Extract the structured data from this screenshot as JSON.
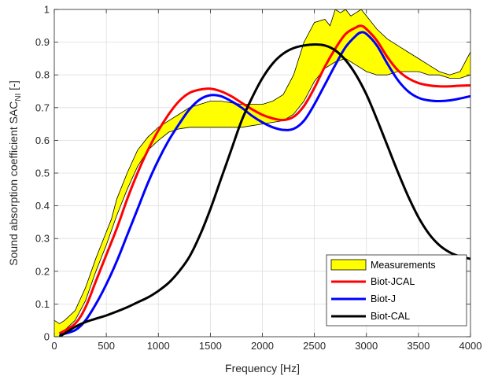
{
  "chart_data": {
    "type": "line",
    "xlabel": "Frequency [Hz]",
    "ylabel_main": "Sound absorption coefficient SAC",
    "ylabel_sub": "NI",
    "ylabel_suffix": " [-]",
    "xlim": [
      0,
      4000
    ],
    "ylim": [
      0,
      1
    ],
    "grid": true,
    "legend_position": "bottom-right",
    "x_ticks": [
      0,
      500,
      1000,
      1500,
      2000,
      2500,
      3000,
      3500,
      4000
    ],
    "y_ticks": [
      0,
      0.1,
      0.2,
      0.3,
      0.4,
      0.5,
      0.6,
      0.7,
      0.8,
      0.9,
      1
    ],
    "x_tick_labels": [
      "0",
      "500",
      "1000",
      "1500",
      "2000",
      "2500",
      "3000",
      "3500",
      "4000"
    ],
    "y_tick_labels": [
      "0",
      "0.1",
      "0.2",
      "0.3",
      "0.4",
      "0.5",
      "0.6",
      "0.7",
      "0.8",
      "0.9",
      "1"
    ],
    "measurement_band": {
      "name": "Measurements",
      "color": "#ffff00",
      "edge_color": "#000000",
      "upper": [
        [
          0,
          0.05
        ],
        [
          50,
          0.04
        ],
        [
          100,
          0.05
        ],
        [
          200,
          0.08
        ],
        [
          300,
          0.15
        ],
        [
          400,
          0.24
        ],
        [
          500,
          0.32
        ],
        [
          550,
          0.36
        ],
        [
          600,
          0.42
        ],
        [
          700,
          0.5
        ],
        [
          800,
          0.57
        ],
        [
          900,
          0.61
        ],
        [
          1000,
          0.64
        ],
        [
          1100,
          0.66
        ],
        [
          1200,
          0.68
        ],
        [
          1300,
          0.7
        ],
        [
          1400,
          0.71
        ],
        [
          1500,
          0.72
        ],
        [
          1600,
          0.72
        ],
        [
          1700,
          0.715
        ],
        [
          1800,
          0.71
        ],
        [
          1900,
          0.71
        ],
        [
          2000,
          0.71
        ],
        [
          2100,
          0.72
        ],
        [
          2200,
          0.74
        ],
        [
          2300,
          0.8
        ],
        [
          2400,
          0.9
        ],
        [
          2500,
          0.96
        ],
        [
          2600,
          0.97
        ],
        [
          2650,
          0.95
        ],
        [
          2700,
          1.0
        ],
        [
          2750,
          0.99
        ],
        [
          2800,
          1.0
        ],
        [
          2850,
          0.98
        ],
        [
          2900,
          0.99
        ],
        [
          2950,
          1.0
        ],
        [
          3000,
          0.98
        ],
        [
          3100,
          0.94
        ],
        [
          3200,
          0.91
        ],
        [
          3300,
          0.89
        ],
        [
          3400,
          0.87
        ],
        [
          3500,
          0.85
        ],
        [
          3600,
          0.83
        ],
        [
          3700,
          0.81
        ],
        [
          3800,
          0.8
        ],
        [
          3900,
          0.81
        ],
        [
          4000,
          0.87
        ]
      ],
      "lower": [
        [
          0,
          0.0
        ],
        [
          50,
          0.0
        ],
        [
          100,
          0.02
        ],
        [
          200,
          0.05
        ],
        [
          300,
          0.11
        ],
        [
          400,
          0.2
        ],
        [
          500,
          0.28
        ],
        [
          600,
          0.37
        ],
        [
          700,
          0.45
        ],
        [
          800,
          0.52
        ],
        [
          900,
          0.57
        ],
        [
          1000,
          0.6
        ],
        [
          1100,
          0.625
        ],
        [
          1200,
          0.635
        ],
        [
          1300,
          0.64
        ],
        [
          1400,
          0.64
        ],
        [
          1500,
          0.64
        ],
        [
          1600,
          0.64
        ],
        [
          1700,
          0.64
        ],
        [
          1800,
          0.64
        ],
        [
          1900,
          0.645
        ],
        [
          2000,
          0.65
        ],
        [
          2100,
          0.655
        ],
        [
          2200,
          0.66
        ],
        [
          2300,
          0.68
        ],
        [
          2400,
          0.72
        ],
        [
          2500,
          0.78
        ],
        [
          2600,
          0.82
        ],
        [
          2700,
          0.84
        ],
        [
          2800,
          0.85
        ],
        [
          2900,
          0.83
        ],
        [
          3000,
          0.81
        ],
        [
          3100,
          0.8
        ],
        [
          3200,
          0.8
        ],
        [
          3300,
          0.81
        ],
        [
          3400,
          0.81
        ],
        [
          3500,
          0.81
        ],
        [
          3600,
          0.8
        ],
        [
          3700,
          0.8
        ],
        [
          3800,
          0.79
        ],
        [
          3900,
          0.79
        ],
        [
          4000,
          0.8
        ]
      ]
    },
    "series": [
      {
        "name": "Biot-JCAL",
        "color": "#ff0000",
        "points": [
          [
            50,
            0.01
          ],
          [
            200,
            0.04
          ],
          [
            300,
            0.09
          ],
          [
            400,
            0.17
          ],
          [
            500,
            0.25
          ],
          [
            600,
            0.33
          ],
          [
            700,
            0.42
          ],
          [
            800,
            0.5
          ],
          [
            900,
            0.57
          ],
          [
            1000,
            0.63
          ],
          [
            1100,
            0.68
          ],
          [
            1200,
            0.72
          ],
          [
            1300,
            0.745
          ],
          [
            1400,
            0.755
          ],
          [
            1500,
            0.758
          ],
          [
            1600,
            0.75
          ],
          [
            1700,
            0.735
          ],
          [
            1800,
            0.715
          ],
          [
            1900,
            0.695
          ],
          [
            2000,
            0.678
          ],
          [
            2100,
            0.667
          ],
          [
            2200,
            0.662
          ],
          [
            2300,
            0.672
          ],
          [
            2400,
            0.705
          ],
          [
            2500,
            0.76
          ],
          [
            2600,
            0.825
          ],
          [
            2700,
            0.88
          ],
          [
            2800,
            0.925
          ],
          [
            2900,
            0.945
          ],
          [
            2950,
            0.95
          ],
          [
            3000,
            0.94
          ],
          [
            3100,
            0.905
          ],
          [
            3200,
            0.855
          ],
          [
            3300,
            0.815
          ],
          [
            3400,
            0.79
          ],
          [
            3500,
            0.775
          ],
          [
            3600,
            0.768
          ],
          [
            3700,
            0.765
          ],
          [
            3800,
            0.765
          ],
          [
            3900,
            0.767
          ],
          [
            4000,
            0.768
          ]
        ]
      },
      {
        "name": "Biot-J",
        "color": "#0000ff",
        "points": [
          [
            50,
            0.005
          ],
          [
            200,
            0.02
          ],
          [
            300,
            0.05
          ],
          [
            400,
            0.1
          ],
          [
            500,
            0.16
          ],
          [
            600,
            0.23
          ],
          [
            700,
            0.31
          ],
          [
            800,
            0.39
          ],
          [
            900,
            0.47
          ],
          [
            1000,
            0.54
          ],
          [
            1100,
            0.6
          ],
          [
            1200,
            0.65
          ],
          [
            1300,
            0.695
          ],
          [
            1400,
            0.725
          ],
          [
            1500,
            0.738
          ],
          [
            1600,
            0.735
          ],
          [
            1700,
            0.72
          ],
          [
            1800,
            0.7
          ],
          [
            1900,
            0.675
          ],
          [
            2000,
            0.655
          ],
          [
            2100,
            0.64
          ],
          [
            2200,
            0.632
          ],
          [
            2300,
            0.635
          ],
          [
            2400,
            0.66
          ],
          [
            2500,
            0.71
          ],
          [
            2600,
            0.77
          ],
          [
            2700,
            0.83
          ],
          [
            2800,
            0.885
          ],
          [
            2900,
            0.92
          ],
          [
            2950,
            0.93
          ],
          [
            3000,
            0.925
          ],
          [
            3100,
            0.89
          ],
          [
            3200,
            0.835
          ],
          [
            3300,
            0.785
          ],
          [
            3400,
            0.75
          ],
          [
            3500,
            0.73
          ],
          [
            3600,
            0.722
          ],
          [
            3700,
            0.72
          ],
          [
            3800,
            0.722
          ],
          [
            3900,
            0.728
          ],
          [
            4000,
            0.735
          ]
        ]
      },
      {
        "name": "Biot-CAL",
        "color": "#000000",
        "points": [
          [
            50,
            0.0
          ],
          [
            200,
            0.03
          ],
          [
            300,
            0.045
          ],
          [
            400,
            0.055
          ],
          [
            500,
            0.065
          ],
          [
            600,
            0.077
          ],
          [
            700,
            0.09
          ],
          [
            800,
            0.105
          ],
          [
            900,
            0.12
          ],
          [
            1000,
            0.14
          ],
          [
            1100,
            0.165
          ],
          [
            1200,
            0.2
          ],
          [
            1300,
            0.245
          ],
          [
            1400,
            0.31
          ],
          [
            1500,
            0.39
          ],
          [
            1600,
            0.48
          ],
          [
            1700,
            0.57
          ],
          [
            1800,
            0.66
          ],
          [
            1900,
            0.73
          ],
          [
            2000,
            0.79
          ],
          [
            2100,
            0.835
          ],
          [
            2200,
            0.865
          ],
          [
            2300,
            0.882
          ],
          [
            2400,
            0.89
          ],
          [
            2500,
            0.893
          ],
          [
            2600,
            0.89
          ],
          [
            2700,
            0.875
          ],
          [
            2800,
            0.845
          ],
          [
            2900,
            0.8
          ],
          [
            3000,
            0.74
          ],
          [
            3100,
            0.665
          ],
          [
            3200,
            0.585
          ],
          [
            3300,
            0.505
          ],
          [
            3400,
            0.43
          ],
          [
            3500,
            0.365
          ],
          [
            3600,
            0.315
          ],
          [
            3700,
            0.28
          ],
          [
            3800,
            0.258
          ],
          [
            3900,
            0.245
          ],
          [
            4000,
            0.238
          ]
        ]
      }
    ]
  }
}
